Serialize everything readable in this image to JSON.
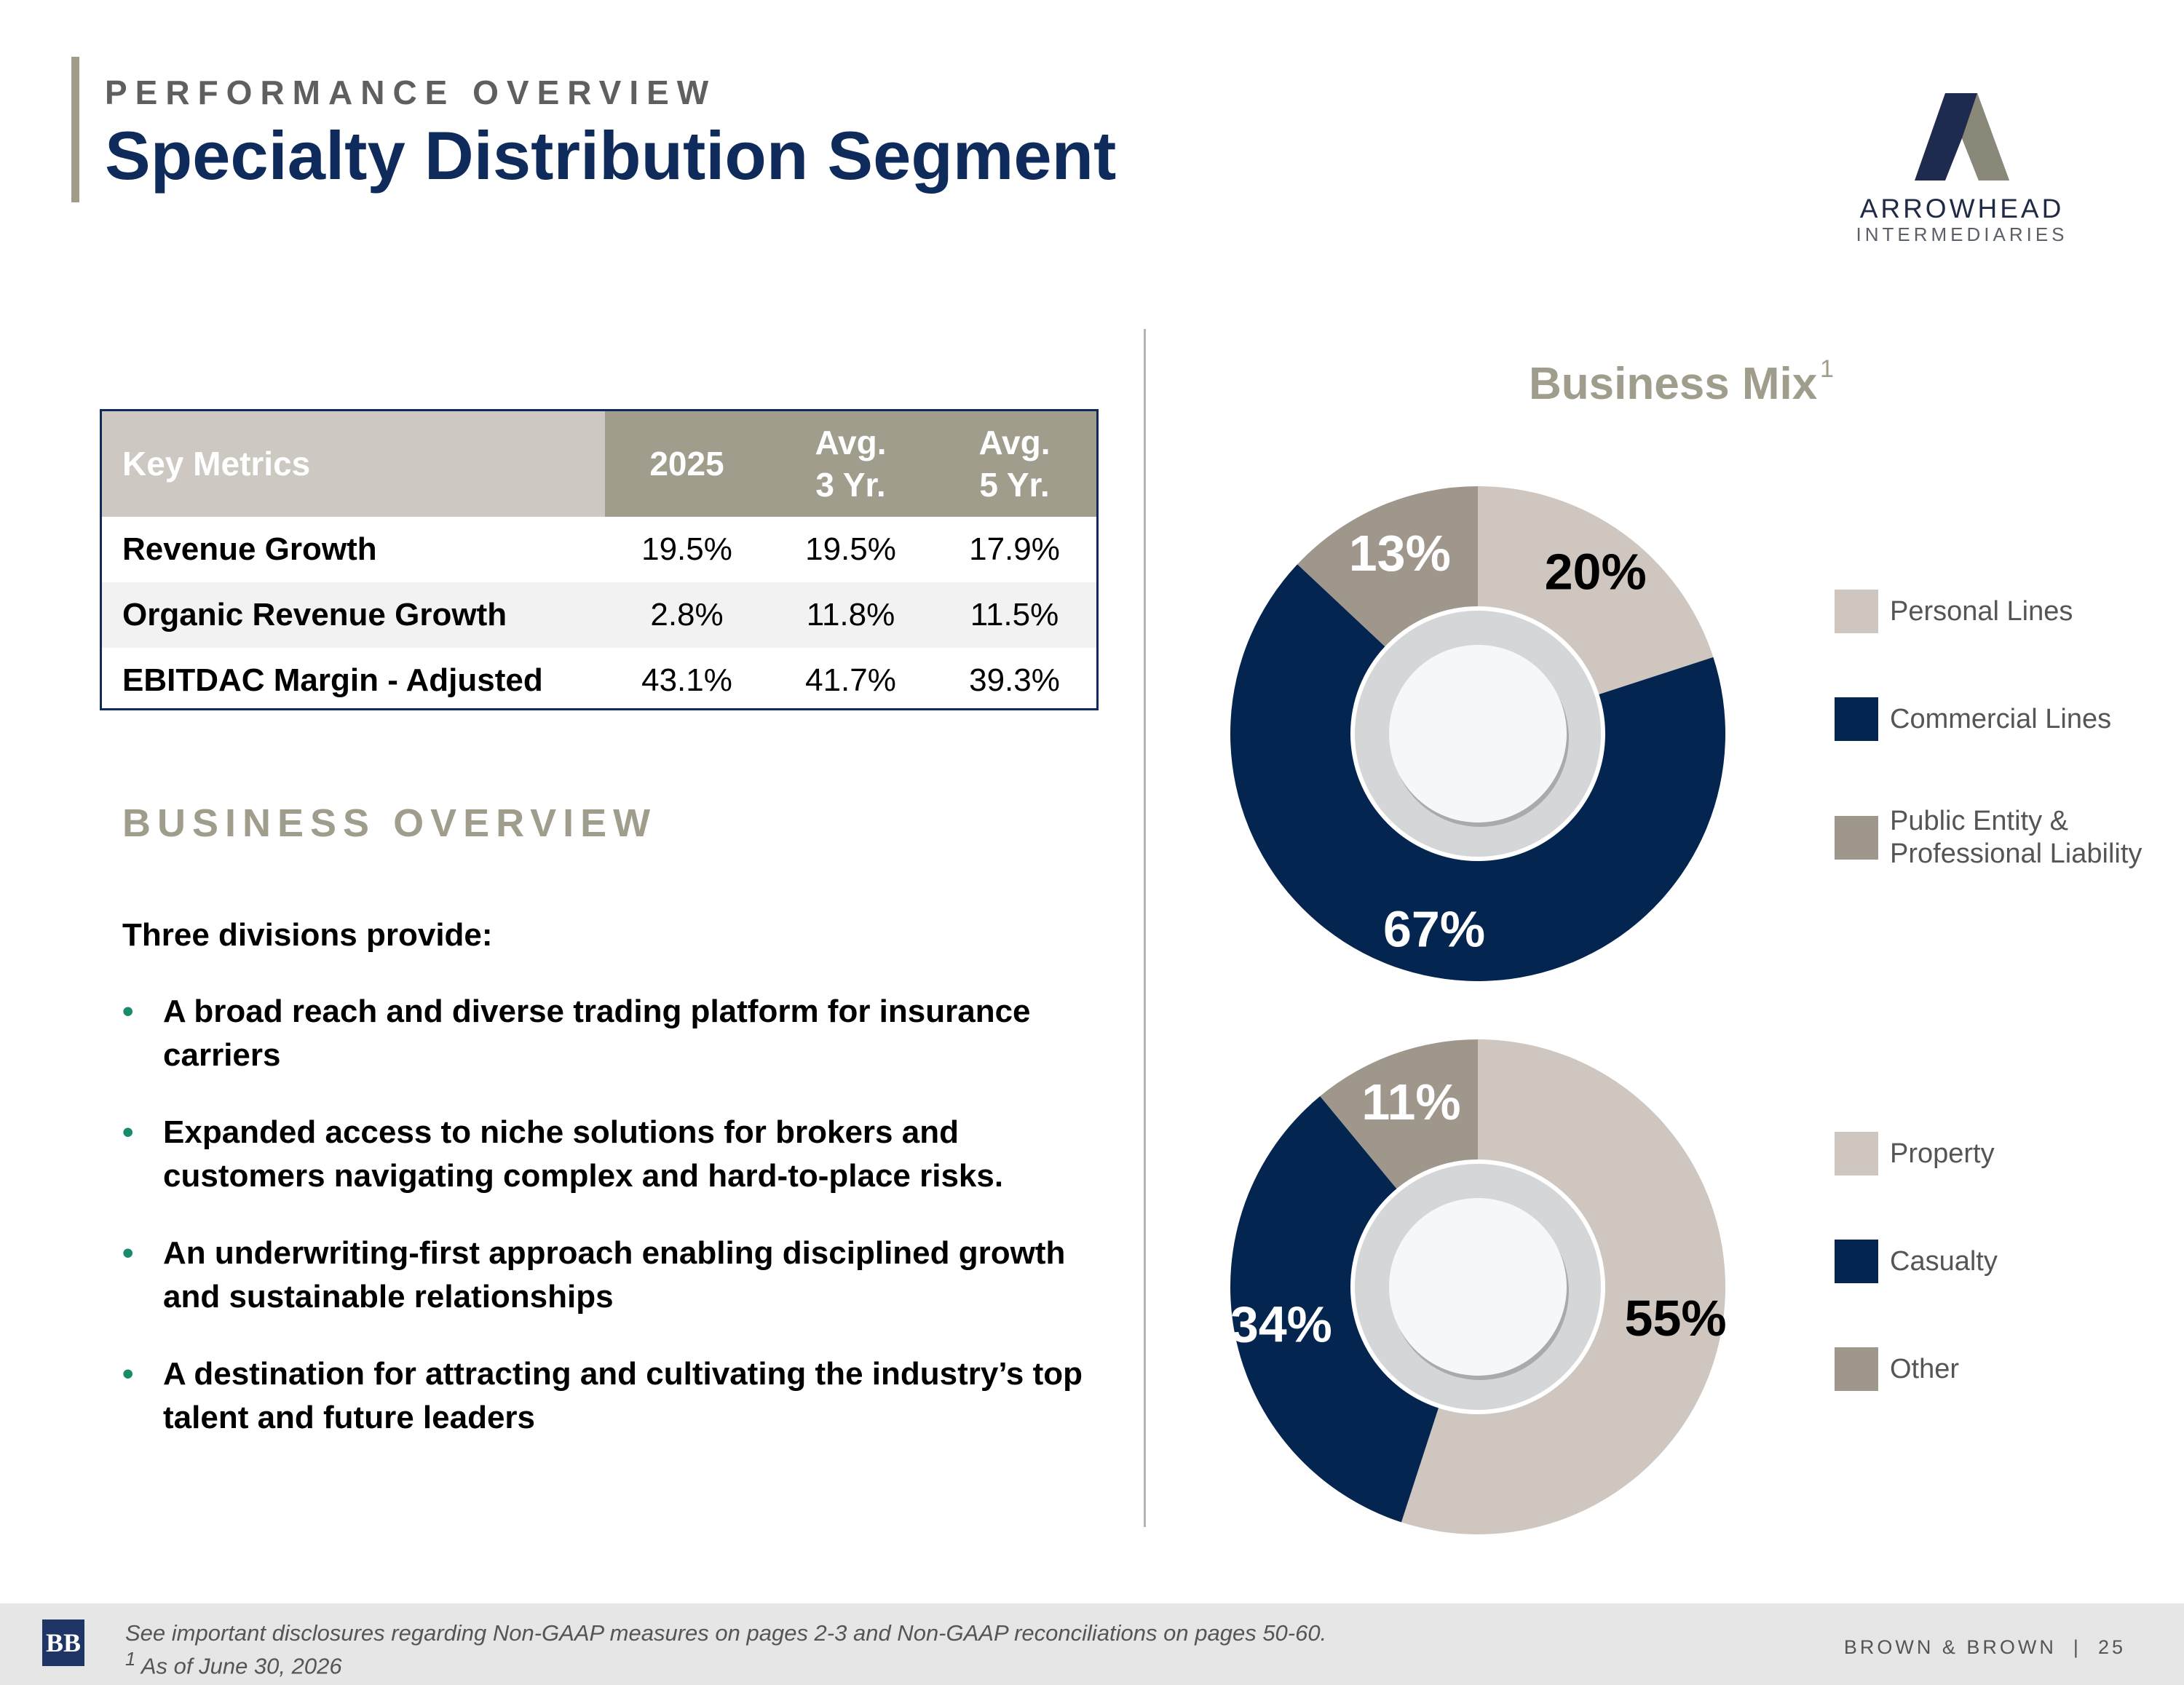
{
  "header": {
    "eyebrow": "PERFORMANCE OVERVIEW",
    "title": "Specialty Distribution Segment"
  },
  "logo": {
    "name": "ARROWHEAD",
    "subtitle": "INTERMEDIARIES"
  },
  "metrics_table": {
    "headers": {
      "label": "Key Metrics",
      "col1": "2025",
      "col2_line1": "Avg.",
      "col2_line2": "3 Yr.",
      "col3_line1": "Avg.",
      "col3_line2": "5 Yr."
    },
    "rows": [
      {
        "label": "Revenue Growth",
        "v2025": "19.5%",
        "avg3": "19.5%",
        "avg5": "17.9%"
      },
      {
        "label": "Organic Revenue Growth",
        "v2025": "2.8%",
        "avg3": "11.8%",
        "avg5": "11.5%"
      },
      {
        "label": "EBITDAC Margin - Adjusted",
        "v2025": "43.1%",
        "avg3": "41.7%",
        "avg5": "39.3%"
      }
    ]
  },
  "overview": {
    "heading": "BUSINESS OVERVIEW",
    "intro": "Three divisions provide:",
    "bullets": [
      "A broad reach and diverse trading platform for insurance carriers",
      "Expanded access to niche solutions for brokers and customers navigating complex and hard-to-place risks.",
      "An underwriting-first approach enabling disciplined growth and sustainable relationships",
      "A destination for attracting and cultivating the industry’s top talent and future leaders"
    ]
  },
  "business_mix": {
    "title": "Business Mix",
    "footnote_marker": "1"
  },
  "colors": {
    "light": "#cec6bf",
    "navy": "#03254f",
    "gray": "#a0978c"
  },
  "chart_data": [
    {
      "type": "pie",
      "categories": [
        "Personal Lines",
        "Commercial Lines",
        "Public Entity & Professional Liability"
      ],
      "legend_lines": [
        [
          "Personal Lines"
        ],
        [
          "Commercial Lines"
        ],
        [
          "Public Entity &",
          "Professional Liability"
        ]
      ],
      "values": [
        20,
        67,
        13
      ],
      "labels": [
        "20%",
        "67%",
        "13%"
      ],
      "colors": [
        "#cec6bf",
        "#03254f",
        "#a0978c"
      ],
      "label_colors": [
        "#000000",
        "#ffffff",
        "#ffffff"
      ],
      "legend": "right"
    },
    {
      "type": "pie",
      "categories": [
        "Property",
        "Casualty",
        "Other"
      ],
      "legend_lines": [
        [
          "Property"
        ],
        [
          "Casualty"
        ],
        [
          "Other"
        ]
      ],
      "values": [
        55,
        34,
        11
      ],
      "labels": [
        "55%",
        "34%",
        "11%"
      ],
      "colors": [
        "#cec6bf",
        "#03254f",
        "#a0978c"
      ],
      "label_colors": [
        "#000000",
        "#ffffff",
        "#ffffff"
      ],
      "legend": "right"
    }
  ],
  "footer": {
    "note1": "See important disclosures regarding Non-GAAP measures on pages 2-3 and Non-GAAP reconciliations on pages 50-60.",
    "note2_marker": "1",
    "note2": " As of June 30, 2026",
    "company": "BROWN & BROWN",
    "separator": "|",
    "page": "25",
    "logo_text": "BB"
  }
}
